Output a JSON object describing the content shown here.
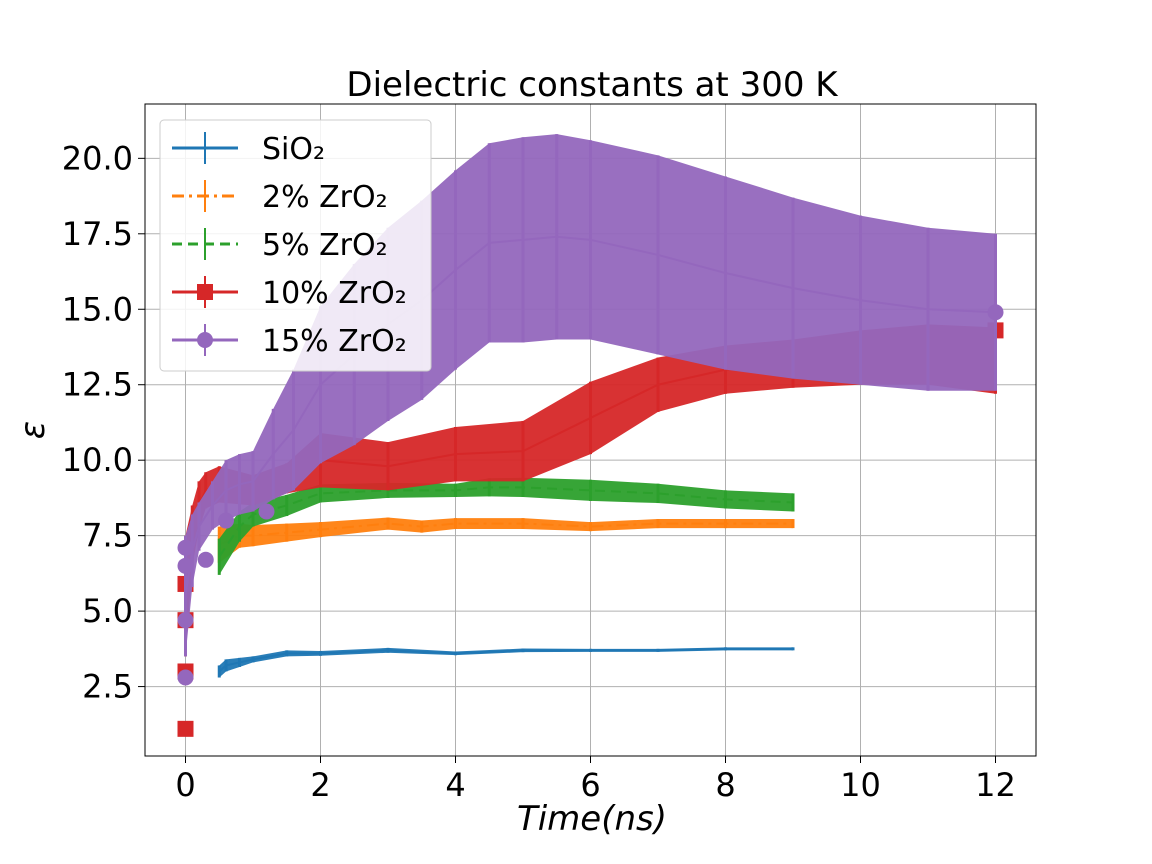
{
  "chart_data": {
    "type": "line",
    "title": "Dielectric constants at 300 K",
    "xlabel": "Time(ns)",
    "ylabel": "ε",
    "xlim": [
      -0.6,
      12.6
    ],
    "ylim": [
      0.2,
      21.8
    ],
    "xticks": [
      "0",
      "2",
      "4",
      "6",
      "8",
      "10",
      "12"
    ],
    "yticks": [
      "2.5",
      "5.0",
      "7.5",
      "10.0",
      "12.5",
      "15.0",
      "17.5",
      "20.0"
    ],
    "grid": true,
    "legend_position": "upper-left",
    "series": [
      {
        "name": "SiO2",
        "legend_label": "SiO₂",
        "color": "#1f77b4",
        "linestyle": "solid",
        "marker": "none",
        "x": [
          0.5,
          0.6,
          0.8,
          1.0,
          1.5,
          2.0,
          3.0,
          4.0,
          5.0,
          6.0,
          7.0,
          8.0,
          9.0
        ],
        "y": [
          3.0,
          3.2,
          3.3,
          3.4,
          3.6,
          3.6,
          3.7,
          3.6,
          3.7,
          3.7,
          3.7,
          3.75,
          3.75
        ],
        "err": [
          0.2,
          0.2,
          0.15,
          0.1,
          0.1,
          0.08,
          0.08,
          0.06,
          0.06,
          0.05,
          0.05,
          0.05,
          0.05
        ]
      },
      {
        "name": "2% ZrO2",
        "legend_label": "2% ZrO₂",
        "color": "#ff7f0e",
        "linestyle": "dashdot",
        "marker": "none",
        "x": [
          0.5,
          0.8,
          1.0,
          1.5,
          2.0,
          3.0,
          3.5,
          4.0,
          5.0,
          6.0,
          7.0,
          8.0,
          9.0
        ],
        "y": [
          7.2,
          7.5,
          7.5,
          7.6,
          7.7,
          7.9,
          7.8,
          7.9,
          7.9,
          7.8,
          7.9,
          7.9,
          7.9
        ],
        "err": [
          0.6,
          0.4,
          0.35,
          0.3,
          0.25,
          0.2,
          0.2,
          0.18,
          0.18,
          0.15,
          0.15,
          0.15,
          0.15
        ]
      },
      {
        "name": "5% ZrO2",
        "legend_label": "5% ZrO₂",
        "color": "#2ca02c",
        "linestyle": "dashed",
        "marker": "none",
        "x": [
          0.5,
          0.8,
          1.0,
          1.5,
          2.0,
          3.0,
          4.0,
          4.5,
          5.0,
          6.0,
          7.0,
          8.0,
          9.0
        ],
        "y": [
          6.8,
          7.8,
          8.2,
          8.5,
          8.9,
          9.0,
          9.0,
          9.1,
          9.1,
          9.0,
          8.9,
          8.7,
          8.6
        ],
        "err": [
          0.6,
          0.5,
          0.4,
          0.35,
          0.3,
          0.25,
          0.22,
          0.3,
          0.32,
          0.35,
          0.32,
          0.3,
          0.3
        ]
      },
      {
        "name": "10% ZrO2",
        "legend_label": "10% ZrO₂",
        "color": "#d62728",
        "linestyle": "solid",
        "marker": "square",
        "x": [
          0.0,
          0.1,
          0.2,
          0.3,
          0.5,
          1.0,
          1.5,
          2.0,
          3.0,
          4.0,
          5.0,
          6.0,
          7.0,
          8.0,
          9.0,
          10.0,
          11.0,
          12.0
        ],
        "y": [
          5.5,
          7.5,
          8.5,
          9.0,
          9.2,
          9.0,
          9.4,
          10.0,
          9.8,
          10.2,
          10.3,
          11.4,
          12.5,
          13.0,
          13.2,
          13.4,
          13.5,
          13.3
        ],
        "err": [
          2.0,
          1.0,
          0.8,
          0.6,
          0.6,
          0.5,
          0.5,
          0.9,
          0.8,
          0.9,
          1.0,
          1.2,
          0.9,
          0.8,
          0.8,
          0.9,
          1.0,
          1.1
        ],
        "markers": [
          {
            "x": 0.0,
            "y": 1.1
          },
          {
            "x": 0.0,
            "y": 3.0
          },
          {
            "x": 0.0,
            "y": 4.7
          },
          {
            "x": 0.0,
            "y": 5.9
          },
          {
            "x": 12.0,
            "y": 14.3
          }
        ]
      },
      {
        "name": "15% ZrO2",
        "legend_label": "15% ZrO₂",
        "color": "#9467bd",
        "linestyle": "solid",
        "marker": "circle",
        "x": [
          0.0,
          0.1,
          0.2,
          0.4,
          0.6,
          0.8,
          1.0,
          1.3,
          1.6,
          2.0,
          2.5,
          3.0,
          3.5,
          4.0,
          4.5,
          5.0,
          5.5,
          6.0,
          7.0,
          8.0,
          9.0,
          10.0,
          11.0,
          12.0
        ],
        "y": [
          5.5,
          7.0,
          7.8,
          8.5,
          9.0,
          9.2,
          9.3,
          10.2,
          11.0,
          12.5,
          13.5,
          14.5,
          15.3,
          16.3,
          17.2,
          17.3,
          17.4,
          17.3,
          16.8,
          16.2,
          15.7,
          15.3,
          15.0,
          14.9
        ],
        "err": [
          2.0,
          1.2,
          0.8,
          0.8,
          1.0,
          1.0,
          1.0,
          1.5,
          2.0,
          2.6,
          3.0,
          3.2,
          3.3,
          3.3,
          3.3,
          3.4,
          3.4,
          3.3,
          3.3,
          3.2,
          3.0,
          2.8,
          2.7,
          2.6
        ],
        "markers": [
          {
            "x": 0.0,
            "y": 2.8
          },
          {
            "x": 0.0,
            "y": 4.7
          },
          {
            "x": 0.0,
            "y": 6.5
          },
          {
            "x": 0.0,
            "y": 7.1
          },
          {
            "x": 0.3,
            "y": 6.7
          },
          {
            "x": 0.6,
            "y": 8.0
          },
          {
            "x": 1.2,
            "y": 8.3
          },
          {
            "x": 12.0,
            "y": 14.9
          }
        ]
      }
    ]
  }
}
